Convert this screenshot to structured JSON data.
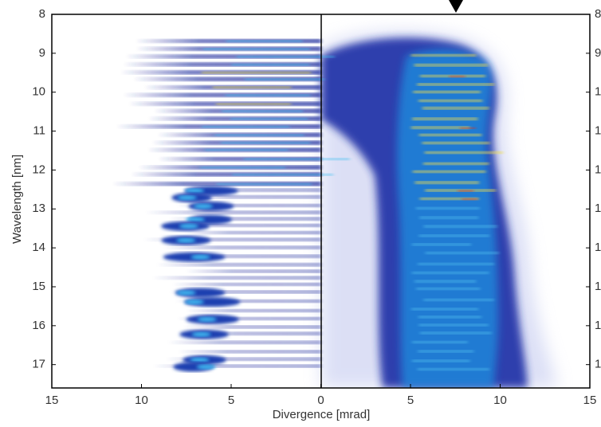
{
  "chart_data": {
    "type": "heatmap-comparison",
    "x_label": "Divergence [mrad]",
    "y_label": "Wavelength [nm]",
    "xlim": [
      -15,
      15
    ],
    "xticks": [
      {
        "value": -15,
        "label": "15"
      },
      {
        "value": -10,
        "label": "10"
      },
      {
        "value": -5,
        "label": "5"
      },
      0,
      5,
      10,
      15
    ],
    "ylim": [
      8,
      17.6
    ],
    "y_inverted": true,
    "yticks": [
      8,
      9,
      10,
      11,
      12,
      13,
      14,
      15,
      16,
      17
    ]
  }
}
